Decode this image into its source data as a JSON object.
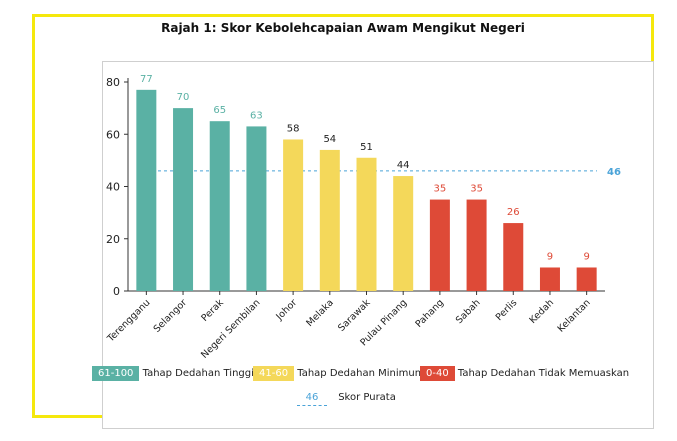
{
  "title": "Rajah 1: Skor Kebolehcapaian Awam Mengikut Negeri",
  "colors": {
    "high": "#5ab1a4",
    "mid": "#f4d85a",
    "low": "#de4a37",
    "avg": "#4aa3d8",
    "frame": "#f5e80c"
  },
  "chart_data": {
    "type": "bar",
    "categories": [
      "Terengganu",
      "Selangor",
      "Perak",
      "Negeri Sembilan",
      "Johor",
      "Melaka",
      "Sarawak",
      "Pulau Pinang",
      "Pahang",
      "Sabah",
      "Perlis",
      "Kedah",
      "Kelantan"
    ],
    "values": [
      77,
      70,
      65,
      63,
      58,
      54,
      51,
      44,
      35,
      35,
      26,
      9,
      9
    ],
    "groups": [
      "high",
      "high",
      "high",
      "high",
      "mid",
      "mid",
      "mid",
      "mid",
      "low",
      "low",
      "low",
      "low",
      "low"
    ],
    "ylim": [
      0,
      80
    ],
    "yticks": [
      0,
      20,
      40,
      60,
      80
    ],
    "average": {
      "value": 46,
      "label": "46"
    },
    "grid": false
  },
  "legend": [
    {
      "key": "high",
      "range": "61-100",
      "label": "Tahap Dedahan Tinggi"
    },
    {
      "key": "mid",
      "range": "41-60",
      "label": "Tahap Dedahan Minimum"
    },
    {
      "key": "low",
      "range": "0-40",
      "label": "Tahap Dedahan Tidak Memuaskan"
    }
  ],
  "avg_legend": {
    "value": "46",
    "label": "Skor Purata"
  }
}
